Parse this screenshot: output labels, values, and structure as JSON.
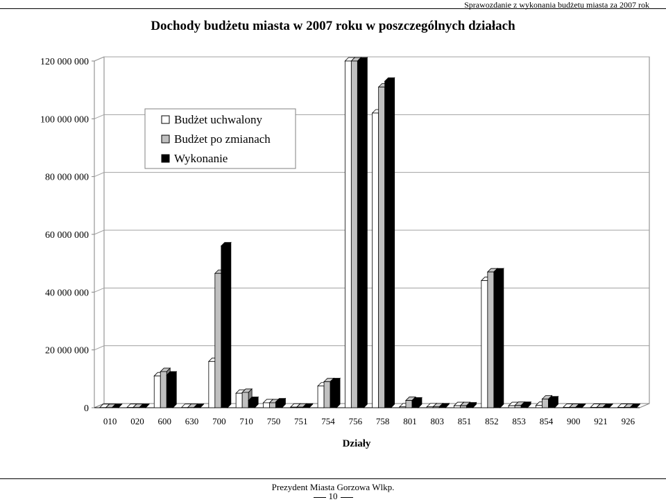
{
  "header": {
    "report_title": "Sprawozdanie z wykonania budżetu miasta za 2007 rok"
  },
  "footer": {
    "author": "Prezydent Miasta Gorzowa Wlkp.",
    "page_number": "10"
  },
  "colors": {
    "uchwalony": "#ffffff",
    "po_zmianach": "#c0c0c0",
    "wykonanie": "#000000",
    "grid": "#a0a0a0"
  },
  "chart_data": {
    "type": "bar",
    "title": "Dochody budżetu miasta w 2007 roku w poszczególnych działach",
    "xlabel": "Działy",
    "ylabel": "",
    "ylim": [
      0,
      120000000
    ],
    "yticks": [
      "0",
      "20 000 000",
      "40 000 000",
      "60 000 000",
      "80 000 000",
      "100 000 000",
      "120 000 000"
    ],
    "grid": true,
    "legend_position": "top-left",
    "categories": [
      "010",
      "020",
      "600",
      "630",
      "700",
      "710",
      "750",
      "751",
      "754",
      "756",
      "758",
      "801",
      "803",
      "851",
      "852",
      "853",
      "854",
      "900",
      "921",
      "926"
    ],
    "series": [
      {
        "name": "Budżet uchwalony",
        "values": [
          50000,
          80000,
          11000000,
          60000,
          16000000,
          5000000,
          1700000,
          200000,
          7500000,
          120000000,
          102000000,
          300000,
          300000,
          700000,
          44000000,
          700000,
          800000,
          100000,
          100000,
          100000
        ]
      },
      {
        "name": "Budżet po zmianach",
        "values": [
          50000,
          80000,
          12500000,
          60000,
          46500000,
          5300000,
          1700000,
          200000,
          9000000,
          120000000,
          111000000,
          2500000,
          300000,
          700000,
          47000000,
          800000,
          3000000,
          100000,
          100000,
          100000
        ]
      },
      {
        "name": "Wykonanie",
        "values": [
          50000,
          80000,
          11300000,
          60000,
          56000000,
          2500000,
          2000000,
          200000,
          9000000,
          120000000,
          113000000,
          2300000,
          300000,
          600000,
          47000000,
          800000,
          2700000,
          100000,
          100000,
          100000
        ]
      }
    ]
  }
}
